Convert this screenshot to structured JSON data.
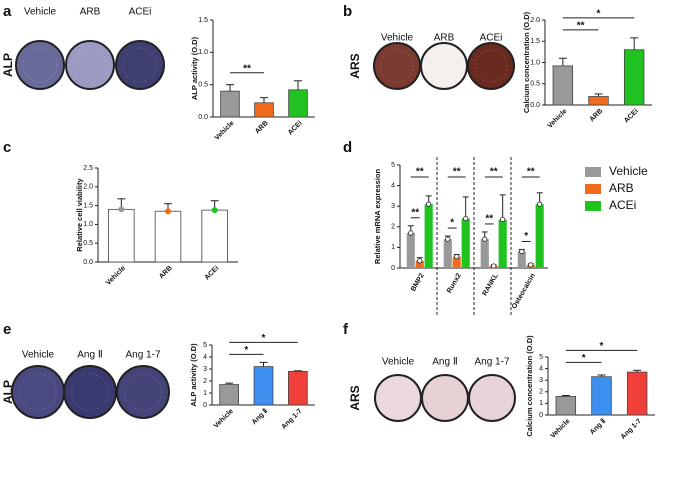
{
  "chart_data": [
    {
      "type": "bar",
      "panel": "a",
      "stain": "ALP",
      "wells": [
        "Vehicle",
        "ARB",
        "ACEi"
      ],
      "well_colors": [
        "#6a6a9a",
        "#9a9ac2",
        "#3e3e70"
      ],
      "y_label": "ALP activity (O.D)",
      "categories": [
        "Vehicle",
        "ARB",
        "ACEi"
      ],
      "values": [
        0.4,
        0.22,
        0.42
      ],
      "errors": [
        0.1,
        0.08,
        0.14
      ],
      "colors": [
        "#999999",
        "#f26b1d",
        "#1fc21f"
      ],
      "ylim": [
        0,
        1.5
      ],
      "yticks": [
        {
          "value": 0,
          "label": "0.0"
        },
        0.5,
        {
          "value": 1,
          "label": "1.0"
        },
        1.5
      ],
      "significance": [
        {
          "pair": [
            "Vehicle",
            "ARB"
          ],
          "label": "**"
        }
      ]
    },
    {
      "type": "bar",
      "panel": "b",
      "stain": "ARS",
      "wells": [
        "Vehicle",
        "ARB",
        "ACEi"
      ],
      "well_colors": [
        "#7a3a30",
        "#f4f0ee",
        "#6a2a20"
      ],
      "y_label": "Calcium concentration (O.D)",
      "categories": [
        "Vehicle",
        "ARB",
        "ACEi"
      ],
      "values": [
        0.92,
        0.2,
        1.3
      ],
      "errors": [
        0.18,
        0.06,
        0.28
      ],
      "colors": [
        "#999999",
        "#f26b1d",
        "#1fc21f"
      ],
      "ylim": [
        0,
        2
      ],
      "yticks": [
        {
          "value": 0,
          "label": "0.0"
        },
        0.5,
        {
          "value": 1,
          "label": "1.0"
        },
        1.5,
        {
          "value": 2,
          "label": "2.0"
        }
      ],
      "significance": [
        {
          "pair": [
            "Vehicle",
            "ARB"
          ],
          "label": "**"
        },
        {
          "pair": [
            "Vehicle",
            "ACEi"
          ],
          "label": "*"
        }
      ]
    },
    {
      "type": "bar",
      "panel": "c",
      "bar_style": "outline",
      "y_label": "Relative cell viability",
      "categories": [
        "Vehicle",
        "ARB",
        "ACEi"
      ],
      "values": [
        1.4,
        1.35,
        1.38
      ],
      "errors": [
        0.28,
        0.2,
        0.25
      ],
      "colors": [
        "#999999",
        "#f26b1d",
        "#1fc21f"
      ],
      "ylim": [
        0,
        2.5
      ],
      "yticks": [
        {
          "value": 0,
          "label": "0.0"
        },
        0.5,
        {
          "value": 1,
          "label": "1.0"
        },
        1.5,
        {
          "value": 2,
          "label": "2.0"
        },
        2.5
      ],
      "significance": []
    },
    {
      "type": "grouped_bar",
      "panel": "d",
      "y_label": "Relative mRNA expression",
      "categories": [
        "BMP2",
        "Runx2",
        "RANKL",
        "Osteocalcin"
      ],
      "series": [
        {
          "name": "Vehicle",
          "color": "#999999",
          "values": [
            1.7,
            1.4,
            1.4,
            0.8
          ],
          "errors": [
            0.35,
            0.15,
            0.35,
            0.1
          ]
        },
        {
          "name": "ARB",
          "color": "#f26b1d",
          "values": [
            0.35,
            0.55,
            0.1,
            0.15
          ],
          "errors": [
            0.15,
            0.1,
            0.05,
            0.05
          ]
        },
        {
          "name": "ACEi",
          "color": "#1fc21f",
          "values": [
            3.1,
            2.4,
            2.35,
            3.1
          ],
          "errors": [
            0.4,
            1.05,
            1.2,
            0.55
          ]
        }
      ],
      "ylim": [
        0,
        5
      ],
      "yticks": [
        0,
        1,
        2,
        3,
        4,
        5
      ],
      "significance": [
        {
          "group": "BMP2",
          "pair": [
            "Vehicle",
            "ARB"
          ],
          "label": "**"
        },
        {
          "group": "BMP2",
          "pair": [
            "Vehicle",
            "ACEi"
          ],
          "label": "**"
        },
        {
          "group": "Runx2",
          "pair": [
            "Vehicle",
            "ARB"
          ],
          "label": "*"
        },
        {
          "group": "Runx2",
          "pair": [
            "Vehicle",
            "ACEi"
          ],
          "label": "**"
        },
        {
          "group": "RANKL",
          "pair": [
            "Vehicle",
            "ARB"
          ],
          "label": "**"
        },
        {
          "group": "RANKL",
          "pair": [
            "Vehicle",
            "ACEi"
          ],
          "label": "**"
        },
        {
          "group": "Osteocalcin",
          "pair": [
            "Vehicle",
            "ARB"
          ],
          "label": "*"
        },
        {
          "group": "Osteocalcin",
          "pair": [
            "Vehicle",
            "ACEi"
          ],
          "label": "**"
        }
      ]
    },
    {
      "type": "bar",
      "panel": "e",
      "stain": "ALP",
      "wells": [
        "Vehicle",
        "Ang Ⅱ",
        "Ang 1-7"
      ],
      "well_colors": [
        "#4a4a80",
        "#3a3a70",
        "#444478"
      ],
      "y_label": "ALP activity (O.D)",
      "categories": [
        "Vehicle",
        "Ang Ⅱ",
        "Ang 1-7"
      ],
      "values": [
        1.7,
        3.2,
        2.8
      ],
      "errors": [
        0.12,
        0.35,
        0.05
      ],
      "colors": [
        "#999999",
        "#3d8ff0",
        "#f0403a"
      ],
      "ylim": [
        0,
        5
      ],
      "yticks": [
        0,
        1,
        2,
        3,
        4,
        5
      ],
      "significance": [
        {
          "pair": [
            "Vehicle",
            "Ang Ⅱ"
          ],
          "label": "*"
        },
        {
          "pair": [
            "Vehicle",
            "Ang 1-7"
          ],
          "label": "*"
        }
      ]
    },
    {
      "type": "bar",
      "panel": "f",
      "stain": "ARS",
      "wells": [
        "Vehicle",
        "Ang Ⅱ",
        "Ang 1-7"
      ],
      "well_colors": [
        "#ead8dc",
        "#e6d0d4",
        "#e8d4d8"
      ],
      "y_label": "Calcium concentration (O.D)",
      "categories": [
        "Vehicle",
        "Ang Ⅱ",
        "Ang 1-7"
      ],
      "values": [
        1.6,
        3.3,
        3.7
      ],
      "errors": [
        0.08,
        0.15,
        0.15
      ],
      "colors": [
        "#999999",
        "#3d8ff0",
        "#f0403a"
      ],
      "ylim": [
        0,
        5
      ],
      "yticks": [
        0,
        1,
        2,
        3,
        4,
        5
      ],
      "significance": [
        {
          "pair": [
            "Vehicle",
            "Ang Ⅱ"
          ],
          "label": "*"
        },
        {
          "pair": [
            "Vehicle",
            "Ang 1-7"
          ],
          "label": "*"
        }
      ]
    }
  ]
}
